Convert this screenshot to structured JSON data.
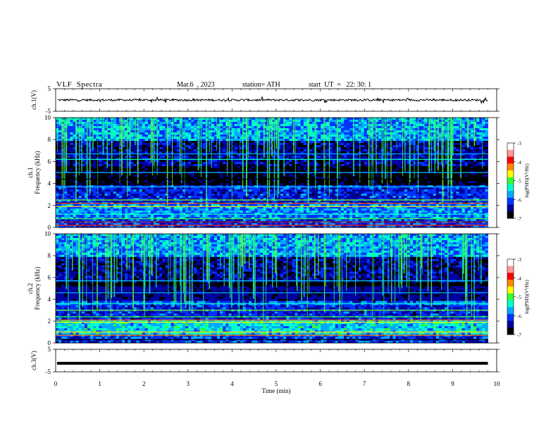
{
  "header": {
    "title": "VLF  Spectra",
    "date": "Mar.6  , 2023",
    "station": "station= ATH",
    "start_ut": "start  UT  =   22: 30: 1"
  },
  "chart_data": {
    "type": "heatmap",
    "x_axis": {
      "label": "Time  (min)",
      "range": [
        0,
        10
      ],
      "ticks": [
        0,
        1,
        2,
        3,
        4,
        5,
        6,
        7,
        8,
        9,
        10
      ],
      "data_extent_end": 9.8
    },
    "panels": [
      {
        "id": "ch1-waveform",
        "type": "line",
        "ylabel": "ch.1(V)",
        "ylim": [
          -5,
          5
        ],
        "yticks": [
          5,
          -5
        ],
        "description_level": 0.0
      },
      {
        "id": "ch1-spectrogram",
        "type": "heatmap",
        "ylabel": "ch.1\nFrequency  (kHz)",
        "ylabel_lines": [
          "ch.1",
          "Frequency  (kHz)"
        ],
        "ylim": [
          0,
          10
        ],
        "yticks": [
          0,
          2,
          4,
          6,
          8,
          10
        ],
        "colorbar": {
          "label": "log(PSD)(V²/Hz)",
          "range": [
            -7,
            -3
          ],
          "ticks": [
            -3,
            -4,
            -5,
            -6,
            -7
          ]
        }
      },
      {
        "id": "ch2-spectrogram",
        "type": "heatmap",
        "ylabel": "ch.2\nFrequency  (kHz)",
        "ylabel_lines": [
          "ch.2",
          "Frequency  (kHz)"
        ],
        "ylim": [
          0,
          10
        ],
        "yticks": [
          0,
          2,
          4,
          6,
          8,
          10
        ],
        "colorbar": {
          "label": "log(PSD)(V²/Hz)",
          "range": [
            -7,
            -3
          ],
          "ticks": [
            -3,
            -4,
            -5,
            -6,
            -7
          ]
        }
      },
      {
        "id": "ch3-waveform",
        "type": "line",
        "ylabel": "ch.3(V)",
        "ylim": [
          -5,
          5
        ],
        "yticks": [
          5,
          -5
        ],
        "description_level": -1.2
      }
    ],
    "colormap": [
      "#000000",
      "#0000a0",
      "#0033ff",
      "#00aaff",
      "#00ffcc",
      "#33ff33",
      "#ffff00",
      "#ff8800",
      "#ff0000",
      "#ffffff"
    ]
  }
}
